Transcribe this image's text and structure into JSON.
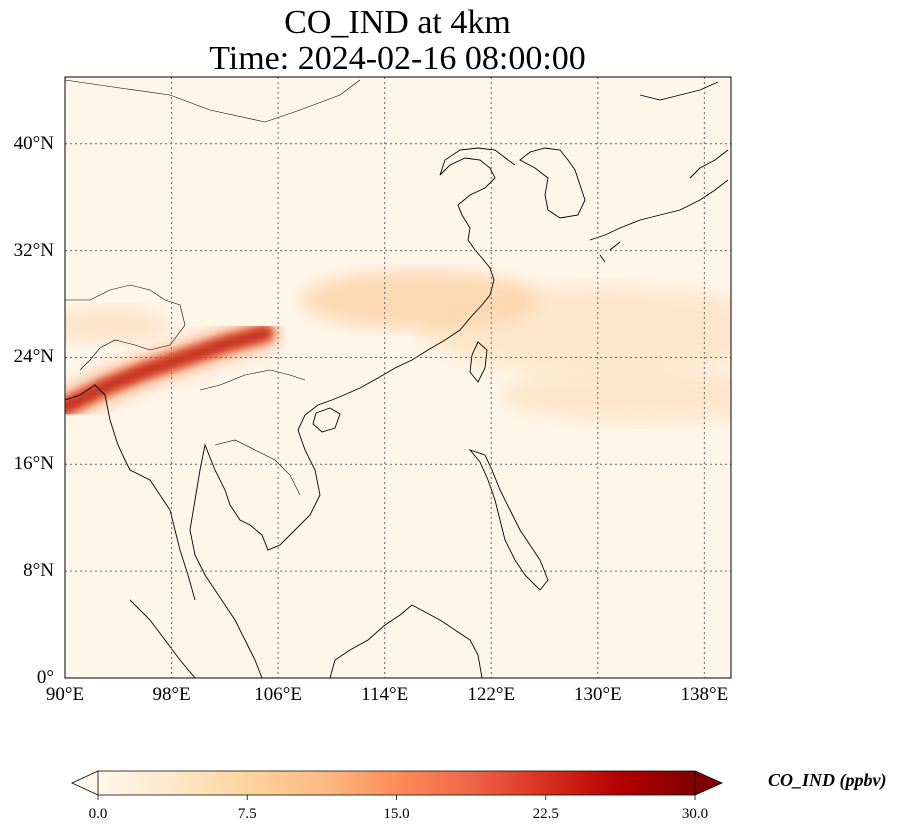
{
  "title_line1": "CO_IND at 4km",
  "title_line2": "Time: 2024-02-16 08:00:00",
  "map": {
    "lon_range": [
      90,
      140
    ],
    "lat_range": [
      0,
      45
    ],
    "gridlines": "dotted",
    "lon_ticks": [
      {
        "value": 90,
        "label": "90°E"
      },
      {
        "value": 98,
        "label": "98°E"
      },
      {
        "value": 106,
        "label": "106°E"
      },
      {
        "value": 114,
        "label": "114°E"
      },
      {
        "value": 122,
        "label": "122°E"
      },
      {
        "value": 130,
        "label": "130°E"
      },
      {
        "value": 138,
        "label": "138°E"
      }
    ],
    "lat_ticks": [
      {
        "value": 0,
        "label": "0°"
      },
      {
        "value": 8,
        "label": "8°N"
      },
      {
        "value": 16,
        "label": "16°N"
      },
      {
        "value": 24,
        "label": "24°N"
      },
      {
        "value": 32,
        "label": "32°N"
      },
      {
        "value": 40,
        "label": "40°N"
      }
    ],
    "colormap": "OrRd",
    "plume_core": [
      {
        "lon": 90,
        "lat": 20.3
      },
      {
        "lon": 93,
        "lat": 21.8
      },
      {
        "lon": 96,
        "lat": 23.0
      },
      {
        "lon": 99,
        "lat": 24.0
      },
      {
        "lon": 102,
        "lat": 25.0
      },
      {
        "lon": 105,
        "lat": 25.8
      }
    ]
  },
  "colorbar": {
    "label": "CO_IND (ppbv)",
    "min": 0.0,
    "max": 30.0,
    "extend": "both",
    "ticks": [
      "0.0",
      "7.5",
      "15.0",
      "22.5",
      "30.0"
    ],
    "colors": [
      "#fff7ec",
      "#fee8c8",
      "#fdd49e",
      "#fdbb84",
      "#fc8d59",
      "#ef6548",
      "#d7301f",
      "#b30000",
      "#7f0000"
    ]
  }
}
